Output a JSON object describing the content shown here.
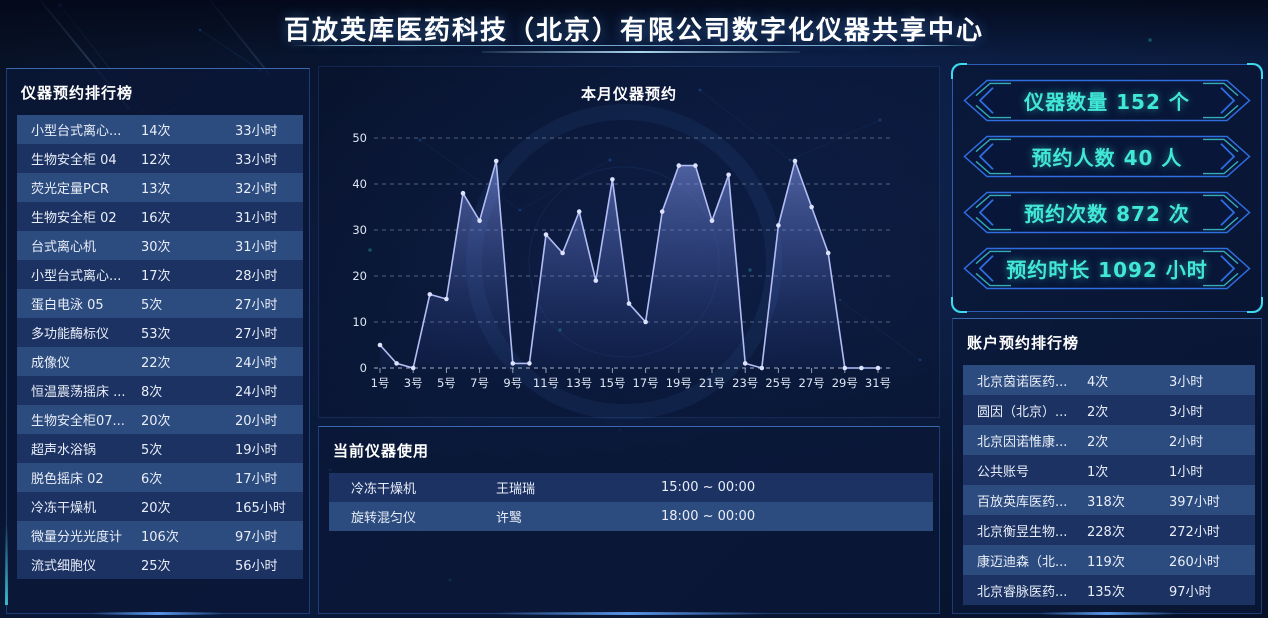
{
  "header": {
    "title": "百放英库医药科技（北京）有限公司数字化仪器共享中心"
  },
  "instrument_ranking": {
    "title": "仪器预约排行榜",
    "rows": [
      {
        "name": "小型台式离心...",
        "count": "14次",
        "hours": "33小时"
      },
      {
        "name": "生物安全柜 04",
        "count": "12次",
        "hours": "33小时"
      },
      {
        "name": "荧光定量PCR",
        "count": "13次",
        "hours": "32小时"
      },
      {
        "name": "生物安全柜 02",
        "count": "16次",
        "hours": "31小时"
      },
      {
        "name": "台式离心机",
        "count": "30次",
        "hours": "31小时"
      },
      {
        "name": "小型台式离心...",
        "count": "17次",
        "hours": "28小时"
      },
      {
        "name": "蛋白电泳 05",
        "count": "5次",
        "hours": "27小时"
      },
      {
        "name": "多功能酶标仪",
        "count": "53次",
        "hours": "27小时"
      },
      {
        "name": "成像仪",
        "count": "22次",
        "hours": "24小时"
      },
      {
        "name": "恒温震荡摇床 ...",
        "count": "8次",
        "hours": "24小时"
      },
      {
        "name": "生物安全柜07...",
        "count": "20次",
        "hours": "20小时"
      },
      {
        "name": "超声水浴锅",
        "count": "5次",
        "hours": "19小时"
      },
      {
        "name": "脱色摇床 02",
        "count": "6次",
        "hours": "17小时"
      },
      {
        "name": "冷冻干燥机",
        "count": "20次",
        "hours": "165小时"
      },
      {
        "name": "微量分光光度计",
        "count": "106次",
        "hours": "97小时"
      },
      {
        "name": "流式细胞仪",
        "count": "25次",
        "hours": "56小时"
      }
    ]
  },
  "chart_data": {
    "type": "area",
    "title": "本月仪器预约",
    "x_suffix": "号",
    "x_tick_labels": [
      "1号",
      "3号",
      "5号",
      "7号",
      "9号",
      "11号",
      "13号",
      "15号",
      "17号",
      "19号",
      "21号",
      "23号",
      "25号",
      "27号",
      "29号",
      "31号"
    ],
    "values": [
      5,
      1,
      0,
      16,
      15,
      38,
      32,
      45,
      1,
      1,
      29,
      25,
      34,
      19,
      41,
      14,
      10,
      34,
      44,
      44,
      32,
      42,
      1,
      0,
      31,
      45,
      35,
      25,
      0,
      0,
      0
    ],
    "ylim": [
      0,
      50
    ],
    "yticks": [
      0,
      10,
      20,
      30,
      40,
      50
    ],
    "grid": "dashed-horizontal",
    "line_color": "#b3bdf4",
    "area_color": "rgba(130,150,235,0.5)"
  },
  "current_usage": {
    "title": "当前仪器使用",
    "rows": [
      {
        "instrument": "冷冻干燥机",
        "user": "王瑞瑞",
        "time": "15:00 ~ 00:00"
      },
      {
        "instrument": "旋转混匀仪",
        "user": "许鹥",
        "time": "18:00 ~ 00:00"
      }
    ]
  },
  "stats": {
    "items": [
      {
        "label": "仪器数量 152 个"
      },
      {
        "label": "预约人数 40 人"
      },
      {
        "label": "预约次数 872 次"
      },
      {
        "label": "预约时长 1092 小时"
      }
    ]
  },
  "account_ranking": {
    "title": "账户预约排行榜",
    "rows": [
      {
        "name": "北京茵诺医药...",
        "count": "4次",
        "hours": "3小时"
      },
      {
        "name": "圆因（北京）...",
        "count": "2次",
        "hours": "3小时"
      },
      {
        "name": "北京因诺惟康...",
        "count": "2次",
        "hours": "2小时"
      },
      {
        "name": "公共账号",
        "count": "1次",
        "hours": "1小时"
      },
      {
        "name": "百放英库医药...",
        "count": "318次",
        "hours": "397小时"
      },
      {
        "name": "北京衡昱生物...",
        "count": "228次",
        "hours": "272小时"
      },
      {
        "name": "康迈迪森（北...",
        "count": "119次",
        "hours": "260小时"
      },
      {
        "name": "北京睿脉医药...",
        "count": "135次",
        "hours": "97小时"
      }
    ]
  },
  "colors": {
    "accent_cyan": "#41e8d8",
    "badge_border": "#2e6ee0",
    "row_light": "#2c4b7e",
    "row_dark": "#1b3263",
    "chart_line": "#b3bdf4"
  }
}
